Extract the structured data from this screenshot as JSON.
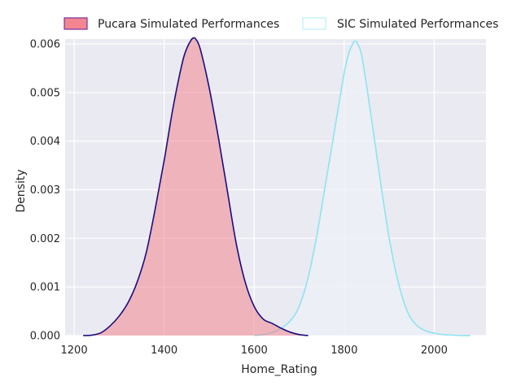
{
  "chart_data": {
    "type": "area",
    "title": "",
    "xlabel": "Home_Rating",
    "ylabel": "Density",
    "xlim": [
      1180,
      2115
    ],
    "ylim": [
      0,
      0.0061
    ],
    "xticks": [
      1200,
      1400,
      1600,
      1800,
      2000
    ],
    "yticks": [
      0,
      0.001,
      0.002,
      0.003,
      0.004,
      0.005,
      0.006
    ],
    "xtick_labels": [
      "1200",
      "1400",
      "1600",
      "1800",
      "2000"
    ],
    "ytick_labels": [
      "0.000",
      "0.001",
      "0.002",
      "0.003",
      "0.004",
      "0.005",
      "0.006"
    ],
    "grid": true,
    "legend_position": "top-center, above plot",
    "series": [
      {
        "name": "Pucara Simulated Performances",
        "fill_color": "#f28590",
        "line_color": "#1a0d80",
        "x": [
          1220,
          1240,
          1260,
          1280,
          1300,
          1320,
          1340,
          1360,
          1380,
          1400,
          1420,
          1440,
          1450,
          1460,
          1465,
          1470,
          1480,
          1500,
          1520,
          1540,
          1560,
          1580,
          1600,
          1620,
          1640,
          1660,
          1680,
          1700,
          1720
        ],
        "y": [
          0.0,
          1e-05,
          6e-05,
          0.0002,
          0.0004,
          0.00068,
          0.0011,
          0.0017,
          0.0026,
          0.0036,
          0.0047,
          0.0056,
          0.0059,
          0.00608,
          0.00612,
          0.0061,
          0.0059,
          0.0051,
          0.0041,
          0.003,
          0.0019,
          0.0011,
          0.0006,
          0.00034,
          0.00025,
          0.00015,
          7e-05,
          2e-05,
          0.0
        ]
      },
      {
        "name": "SIC Simulated Performances",
        "fill_color": "#eef0f6",
        "line_color": "#8de4ee",
        "x": [
          1600,
          1620,
          1640,
          1660,
          1680,
          1700,
          1720,
          1740,
          1760,
          1780,
          1800,
          1810,
          1820,
          1825,
          1830,
          1840,
          1860,
          1880,
          1900,
          1920,
          1940,
          1960,
          1980,
          2000,
          2020,
          2040,
          2060,
          2080
        ],
        "y": [
          0.0,
          2e-05,
          6e-05,
          0.00015,
          0.0003,
          0.0006,
          0.0012,
          0.0021,
          0.0032,
          0.0043,
          0.0054,
          0.0058,
          0.00602,
          0.00605,
          0.006,
          0.0057,
          0.0045,
          0.0032,
          0.002,
          0.0011,
          0.0005,
          0.00022,
          0.0001,
          5e-05,
          2e-05,
          1e-05,
          0.0,
          0.0
        ]
      }
    ]
  }
}
